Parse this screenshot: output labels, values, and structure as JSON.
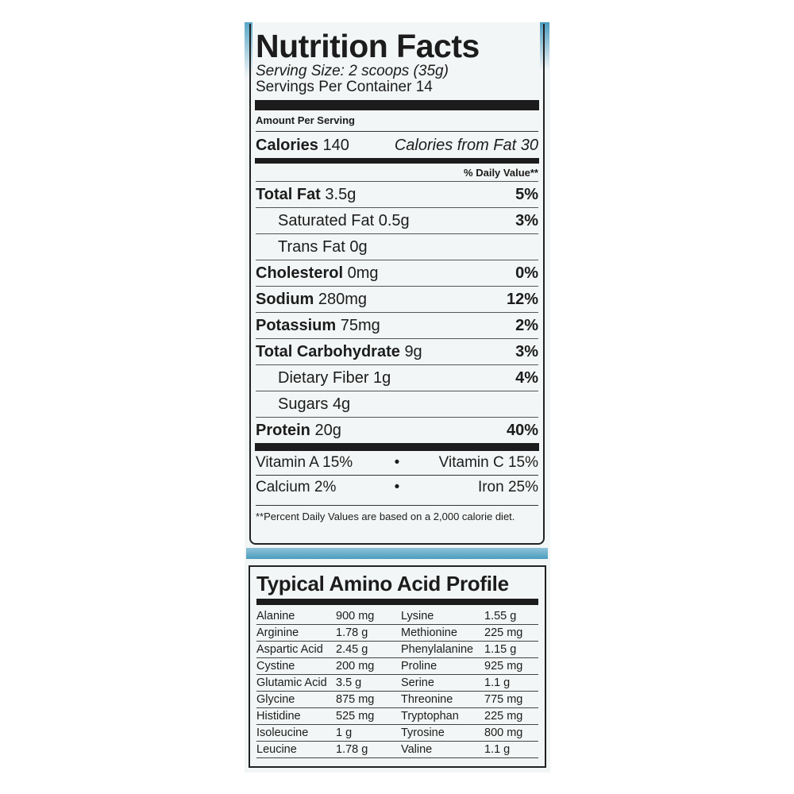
{
  "nutrition": {
    "title": "Nutrition Facts",
    "serving_size": "Serving Size: 2 scoops (35g)",
    "servings_per_container": "Servings Per Container 14",
    "amount_per_serving": "Amount Per Serving",
    "calories_label": "Calories",
    "calories_value": "140",
    "calories_from_fat": "Calories from Fat 30",
    "daily_value_header": "% Daily Value**",
    "rows": [
      {
        "label": "Total Fat",
        "amount": "3.5g",
        "pct": "5%",
        "bold": true
      },
      {
        "label": "Saturated Fat",
        "amount": "0.5g",
        "pct": "3%",
        "bold": false
      },
      {
        "label": "Trans Fat",
        "amount": "0g",
        "pct": "",
        "bold": false
      },
      {
        "label": "Cholesterol",
        "amount": "0mg",
        "pct": "0%",
        "bold": true
      },
      {
        "label": "Sodium",
        "amount": "280mg",
        "pct": "12%",
        "bold": true
      },
      {
        "label": "Potassium",
        "amount": "75mg",
        "pct": "2%",
        "bold": true
      },
      {
        "label": "Total Carbohydrate",
        "amount": "9g",
        "pct": "3%",
        "bold": true
      },
      {
        "label": "Dietary Fiber",
        "amount": "1g",
        "pct": "4%",
        "bold": false
      },
      {
        "label": "Sugars",
        "amount": "4g",
        "pct": "",
        "bold": false
      },
      {
        "label": "Protein",
        "amount": "20g",
        "pct": "40%",
        "bold": true
      }
    ],
    "vitamins": [
      [
        "Vitamin A 15%",
        "Vitamin C 15%"
      ],
      [
        "Calcium 2%",
        "Iron 25%"
      ]
    ],
    "bullet": "•",
    "footnote": "**Percent Daily Values are based on a 2,000 calorie diet."
  },
  "amino": {
    "title": "Typical Amino Acid Profile",
    "rows": [
      [
        "Alanine",
        "900 mg",
        "Lysine",
        "1.55 g"
      ],
      [
        "Arginine",
        "1.78 g",
        "Methionine",
        "225 mg"
      ],
      [
        "Aspartic Acid",
        "2.45 g",
        "Phenylalanine",
        "1.15 g"
      ],
      [
        "Cystine",
        "200 mg",
        "Proline",
        "925 mg"
      ],
      [
        "Glutamic Acid",
        "3.5 g",
        "Serine",
        "1.1 g"
      ],
      [
        "Glycine",
        "875 mg",
        "Threonine",
        "775 mg"
      ],
      [
        "Histidine",
        "525 mg",
        "Tryptophan",
        "225 mg"
      ],
      [
        "Isoleucine",
        "1 g",
        "Tyrosine",
        "800 mg"
      ],
      [
        "Leucine",
        "1.78 g",
        "Valine",
        "1.1 g"
      ]
    ]
  },
  "colors": {
    "package_blue": "#4b9cbf",
    "ink": "#1c1c1c"
  }
}
